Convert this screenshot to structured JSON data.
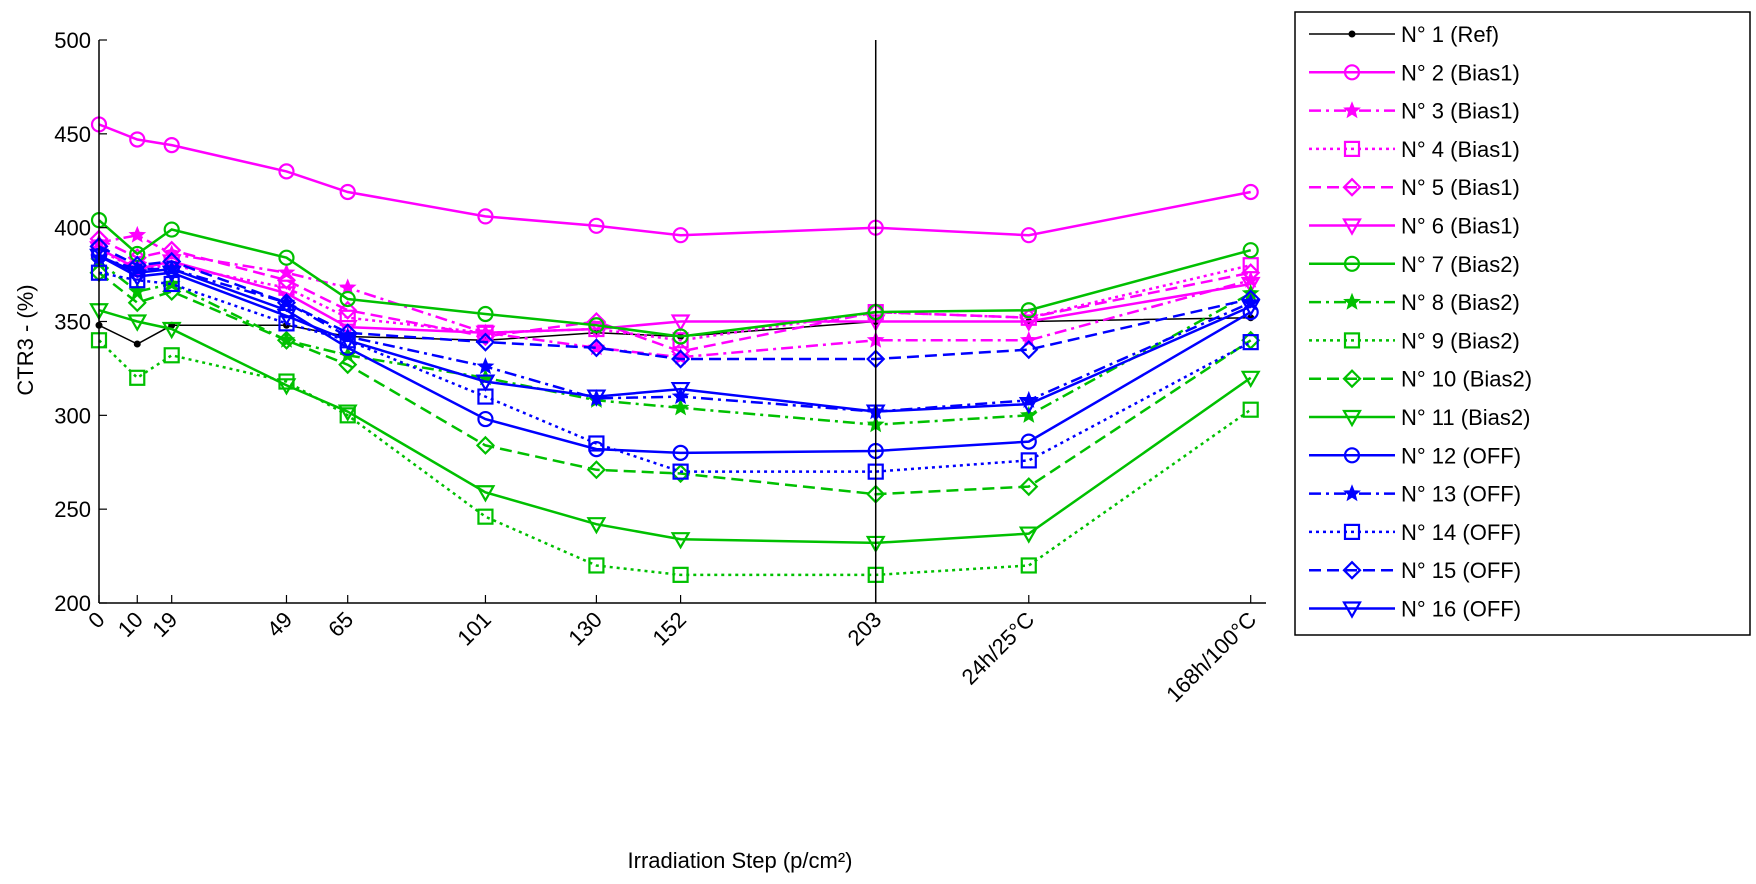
{
  "chart_data": {
    "type": "line",
    "title": "",
    "xlabel": "Irradiation Step (p/cm²)",
    "ylabel": "CTR3 - (%)",
    "ylim": [
      200,
      500
    ],
    "yticks": [
      200,
      250,
      300,
      350,
      400,
      450,
      500
    ],
    "x_ticks": [
      {
        "label": "0",
        "x": 0
      },
      {
        "label": "10",
        "x": 10
      },
      {
        "label": "19",
        "x": 19
      },
      {
        "label": "49",
        "x": 49
      },
      {
        "label": "65",
        "x": 65
      },
      {
        "label": "101",
        "x": 101
      },
      {
        "label": "130",
        "x": 130
      },
      {
        "label": "152",
        "x": 152
      },
      {
        "label": "203",
        "x": 203
      },
      {
        "label": "24h/25°C",
        "x": 243
      },
      {
        "label": "168h/100°C",
        "x": 301
      }
    ],
    "xlim": [
      0,
      305
    ],
    "vline_x": 203,
    "grid": false,
    "legend_position": "right-outside",
    "series": [
      {
        "name": "N° 1 (Ref)",
        "color": "#000000",
        "dash": "solid",
        "marker": "dot",
        "values": [
          348,
          338,
          348,
          348,
          342,
          340,
          344,
          342,
          350,
          350,
          352
        ]
      },
      {
        "name": "N° 2 (Bias1)",
        "color": "#ff00ff",
        "dash": "solid",
        "marker": "circle",
        "values": [
          455,
          447,
          444,
          430,
          419,
          406,
          401,
          396,
          400,
          396,
          419
        ]
      },
      {
        "name": "N° 3 (Bias1)",
        "color": "#ff00ff",
        "dash": "dashdot",
        "marker": "star",
        "values": [
          392,
          396,
          386,
          376,
          368,
          344,
          336,
          331,
          340,
          340,
          372
        ]
      },
      {
        "name": "N° 4 (Bias1)",
        "color": "#ff00ff",
        "dash": "dotted",
        "marker": "square",
        "values": [
          388,
          378,
          380,
          368,
          352,
          344,
          346,
          340,
          355,
          352,
          380
        ]
      },
      {
        "name": "N° 5 (Bias1)",
        "color": "#ff00ff",
        "dash": "dashed",
        "marker": "diamond",
        "values": [
          394,
          384,
          388,
          372,
          356,
          342,
          350,
          334,
          355,
          352,
          376
        ]
      },
      {
        "name": "N° 6 (Bias1)",
        "color": "#ff00ff",
        "dash": "solid",
        "marker": "triangle-down",
        "values": [
          389,
          378,
          382,
          365,
          347,
          344,
          346,
          350,
          350,
          350,
          370
        ]
      },
      {
        "name": "N° 7 (Bias2)",
        "color": "#00c000",
        "dash": "solid",
        "marker": "circle",
        "values": [
          404,
          386,
          399,
          384,
          362,
          354,
          348,
          342,
          355,
          356,
          388
        ]
      },
      {
        "name": "N° 8 (Bias2)",
        "color": "#00c000",
        "dash": "dashdot",
        "marker": "star",
        "values": [
          382,
          366,
          370,
          340,
          332,
          320,
          308,
          304,
          295,
          300,
          365
        ]
      },
      {
        "name": "N° 9 (Bias2)",
        "color": "#00c000",
        "dash": "dotted",
        "marker": "square",
        "values": [
          340,
          320,
          332,
          318,
          300,
          246,
          220,
          215,
          215,
          220,
          303
        ]
      },
      {
        "name": "N° 10 (Bias2)",
        "color": "#00c000",
        "dash": "dashed",
        "marker": "diamond",
        "values": [
          376,
          360,
          366,
          340,
          327,
          284,
          271,
          269,
          258,
          262,
          340
        ]
      },
      {
        "name": "N° 11 (Bias2)",
        "color": "#00c000",
        "dash": "solid",
        "marker": "triangle-down",
        "values": [
          356,
          350,
          346,
          316,
          302,
          259,
          242,
          234,
          232,
          237,
          320
        ]
      },
      {
        "name": "N° 12 (OFF)",
        "color": "#0000ff",
        "dash": "solid",
        "marker": "circle",
        "values": [
          385,
          376,
          378,
          356,
          336,
          298,
          282,
          280,
          281,
          286,
          355
        ]
      },
      {
        "name": "N° 13 (OFF)",
        "color": "#0000ff",
        "dash": "dashdot",
        "marker": "star",
        "values": [
          384,
          378,
          378,
          360,
          342,
          326,
          309,
          310,
          302,
          308,
          360
        ]
      },
      {
        "name": "N° 14 (OFF)",
        "color": "#0000ff",
        "dash": "dotted",
        "marker": "square",
        "values": [
          376,
          372,
          370,
          349,
          340,
          310,
          285,
          270,
          270,
          276,
          339
        ]
      },
      {
        "name": "N° 15 (OFF)",
        "color": "#0000ff",
        "dash": "dashed",
        "marker": "diamond",
        "values": [
          390,
          380,
          382,
          360,
          344,
          339,
          336,
          330,
          330,
          335,
          362
        ]
      },
      {
        "name": "N° 16 (OFF)",
        "color": "#0000ff",
        "dash": "solid",
        "marker": "triangle-down",
        "values": [
          385,
          374,
          376,
          353,
          340,
          318,
          310,
          314,
          302,
          306,
          358
        ]
      }
    ]
  }
}
